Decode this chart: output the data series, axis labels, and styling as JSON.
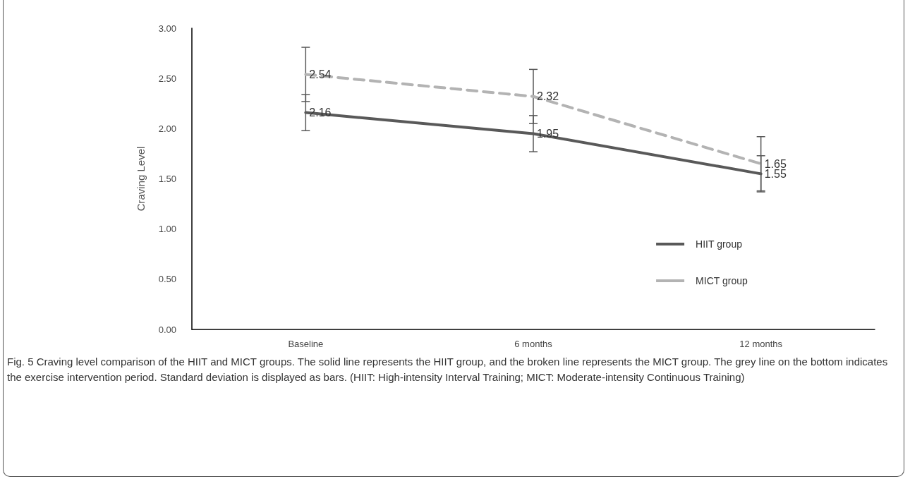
{
  "chart_data": {
    "type": "line",
    "categories": [
      "Baseline",
      "6 months",
      "12 months"
    ],
    "ylabel": "Craving Level",
    "ylim": [
      0,
      3
    ],
    "yticks": [
      {
        "value": 0,
        "label": "0.00"
      },
      {
        "value": 0.5,
        "label": "0.50"
      },
      {
        "value": 1,
        "label": "1.00"
      },
      {
        "value": 1.5,
        "label": "1.50"
      },
      {
        "value": 2,
        "label": "2.00"
      },
      {
        "value": 2.5,
        "label": "2.50"
      },
      {
        "value": 3,
        "label": "3.00"
      }
    ],
    "series": [
      {
        "name": "HIIT group",
        "color": "#595959",
        "line_style": "solid",
        "values": [
          2.16,
          1.95,
          1.55
        ],
        "errors": [
          0.18,
          0.18,
          0.18
        ]
      },
      {
        "name": "MICT group",
        "color": "#b3b3b3",
        "line_style": "dashed",
        "values": [
          2.54,
          2.32,
          1.65
        ],
        "errors": [
          0.27,
          0.27,
          0.27
        ]
      }
    ],
    "data_labels": true,
    "marker": "none",
    "grid": false,
    "legend": "bottom right",
    "annotations": [
      "Fig. 5 Craving level comparison of the HIIT and MICT groups. The solid line represents the HIIT group, and the broken line represents the MICT group. The grey line on the bottom indicates the exercise intervention period. Standard deviation is displayed as bars. (HIIT: High-intensity Interval Training; MICT: Moderate-intensity Continuous Training)"
    ]
  }
}
